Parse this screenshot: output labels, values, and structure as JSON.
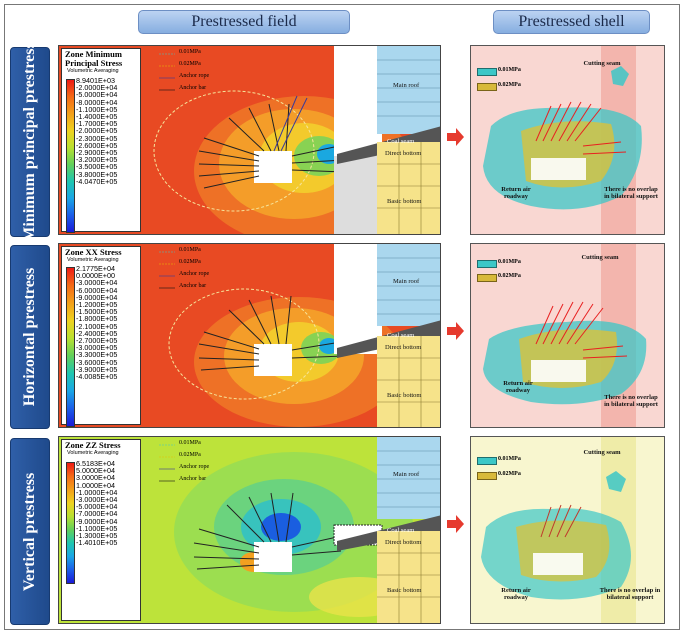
{
  "headers": {
    "field": "Prestressed field",
    "shell": "Prestressed shell"
  },
  "rows": [
    {
      "side_label": "Minimum principal prestress",
      "legend_title": "Zone Minimum Principal Stress",
      "legend_sub": "Volumetric Averaging",
      "ticks": [
        "8.9401E+03",
        "-2.0000E+04",
        "-5.0000E+04",
        "-8.0000E+04",
        "-1.1000E+05",
        "-1.4000E+05",
        "-1.7000E+05",
        "-2.0000E+05",
        "-2.3000E+05",
        "-2.6000E+05",
        "-2.9000E+05",
        "-3.2000E+05",
        "-3.5000E+05",
        "-3.8000E+05",
        "-4.0470E+05"
      ],
      "key_001": "0.01MPa",
      "key_002": "0.02MPa",
      "key_rope": "Anchor rope",
      "key_bar": "Anchor bar",
      "main_roof": "Main roof",
      "coal_seam": "Coal seam",
      "direct_bottom": "Direct bottom",
      "basic_bottom": "Basic bottom",
      "shell_001": "0.01MPa",
      "shell_002": "0.02MPa",
      "cutting_seam": "Cutting seam",
      "return_air": "Return air roadway",
      "no_overlap": "There is no overlap in bilateral support",
      "field_bg": "#e63a22"
    },
    {
      "side_label": "Horizontal prestress",
      "legend_title": "Zone XX Stress",
      "legend_sub": "Volumetric Averaging",
      "ticks": [
        "2.1775E+04",
        "0.0000E+00",
        "-3.0000E+04",
        "-6.0000E+04",
        "-9.0000E+04",
        "-1.2000E+05",
        "-1.5000E+05",
        "-1.8000E+05",
        "-2.1000E+05",
        "-2.4000E+05",
        "-2.7000E+05",
        "-3.0000E+05",
        "-3.3000E+05",
        "-3.6000E+05",
        "-3.9000E+05",
        "-4.0085E+05"
      ],
      "key_001": "0.01MPa",
      "key_002": "0.02MPa",
      "key_rope": "Anchor rope",
      "key_bar": "Anchor bar",
      "main_roof": "Main roof",
      "coal_seam": "Coal seam",
      "direct_bottom": "Direct bottom",
      "basic_bottom": "Basic bottom",
      "shell_001": "0.01MPa",
      "shell_002": "0.02MPa",
      "cutting_seam": "Cutting seam",
      "return_air": "Return air roadway",
      "no_overlap": "There is no overlap in bilateral support",
      "field_bg": "#e63a22"
    },
    {
      "side_label": "Vertical prestress",
      "legend_title": "Zone ZZ Stress",
      "legend_sub": "Volumetric Averaging",
      "ticks": [
        "6.5183E+04",
        "5.0000E+04",
        "3.0000E+04",
        "1.0000E+04",
        "-1.0000E+04",
        "-3.0000E+04",
        "-5.0000E+04",
        "-7.0000E+04",
        "-9.0000E+04",
        "-1.1000E+05",
        "-1.3000E+05",
        "-1.4010E+05"
      ],
      "key_001": "0.01MPa",
      "key_002": "0.02MPa",
      "key_rope": "Anchor rope",
      "key_bar": "Anchor bar",
      "main_roof": "Main roof",
      "coal_seam": "Coal seam",
      "direct_bottom": "Direct bottom",
      "basic_bottom": "Basic bottom",
      "shell_001": "0.01MPa",
      "shell_002": "0.02MPa",
      "cutting_seam": "Cutting seam",
      "return_air": "Return air roadway",
      "no_overlap": "There is no overlap in bilateral support",
      "field_bg": "#bde33a"
    }
  ]
}
